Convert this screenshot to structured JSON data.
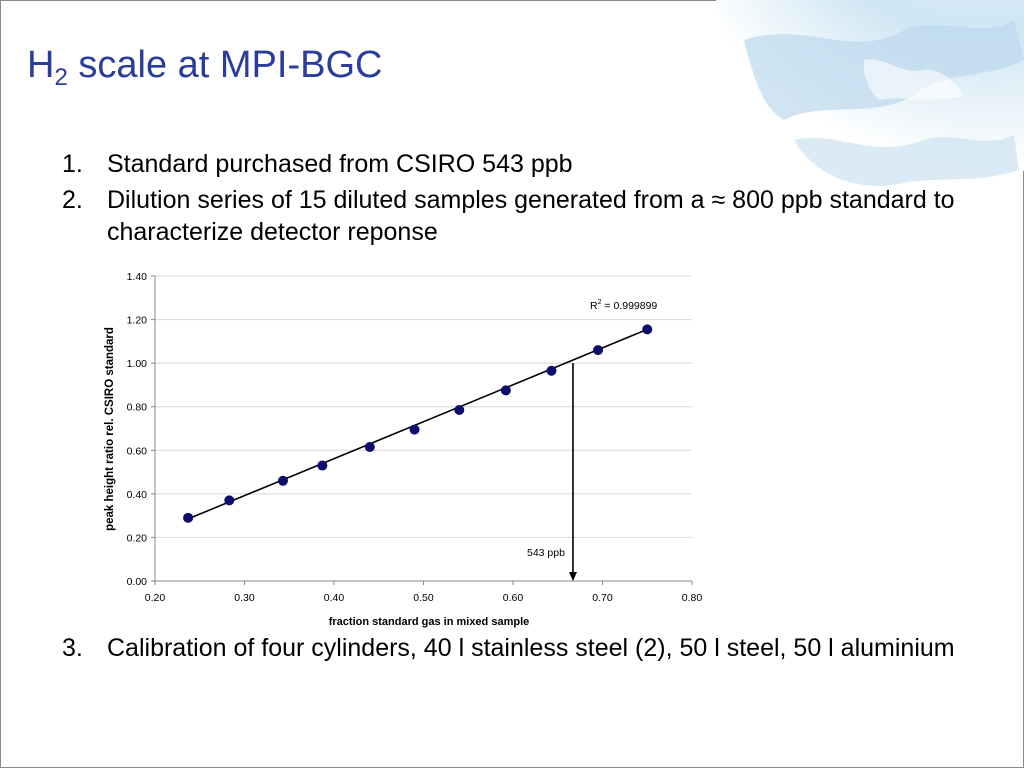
{
  "slide": {
    "title_main": "H",
    "title_sub": "2",
    "title_rest": " scale at MPI-BGC",
    "bullets_top": [
      {
        "num": "1.",
        "text": "Standard purchased from CSIRO 543 ppb"
      },
      {
        "num": "2.",
        "text": "Dilution series of 15 diluted samples generated from a ≈ 800 ppb standard to characterize detector reponse"
      }
    ],
    "bullets_bottom": [
      {
        "num": "3.",
        "text": "Calibration of four cylinders, 40 l stainless steel (2), 50 l steel, 50 l aluminium"
      }
    ]
  },
  "colors": {
    "title": "#2a3c9c",
    "points": "#0d0d6b",
    "line": "#000000",
    "grid": "#d8d8d8",
    "globe": "#bfdcef"
  },
  "decorations": {
    "corner_image": "globe"
  },
  "chart_data": {
    "type": "scatter",
    "xlabel": "fraction standard gas in mixed sample",
    "ylabel": "peak height ratio rel. CSIRO standard",
    "xlim": [
      0.2,
      0.8
    ],
    "ylim": [
      0.0,
      1.4
    ],
    "x_ticks": [
      "0.20",
      "0.30",
      "0.40",
      "0.50",
      "0.60",
      "0.70",
      "0.80"
    ],
    "y_ticks": [
      "0.00",
      "0.20",
      "0.40",
      "0.60",
      "0.80",
      "1.00",
      "1.20",
      "1.40"
    ],
    "grid": "horizontal",
    "points": [
      {
        "x": 0.237,
        "y": 0.29
      },
      {
        "x": 0.283,
        "y": 0.37
      },
      {
        "x": 0.343,
        "y": 0.46
      },
      {
        "x": 0.387,
        "y": 0.53
      },
      {
        "x": 0.44,
        "y": 0.615
      },
      {
        "x": 0.49,
        "y": 0.695
      },
      {
        "x": 0.54,
        "y": 0.785
      },
      {
        "x": 0.592,
        "y": 0.875
      },
      {
        "x": 0.643,
        "y": 0.965
      },
      {
        "x": 0.695,
        "y": 1.06
      },
      {
        "x": 0.75,
        "y": 1.155
      }
    ],
    "trendline": {
      "x": [
        0.237,
        0.75
      ],
      "y": [
        0.285,
        1.155
      ],
      "r2_label": "R² = 0.999899"
    },
    "annotation": {
      "label": "543 ppb",
      "x": 0.667,
      "y_from": 1.0,
      "y_to": 0.0
    }
  }
}
